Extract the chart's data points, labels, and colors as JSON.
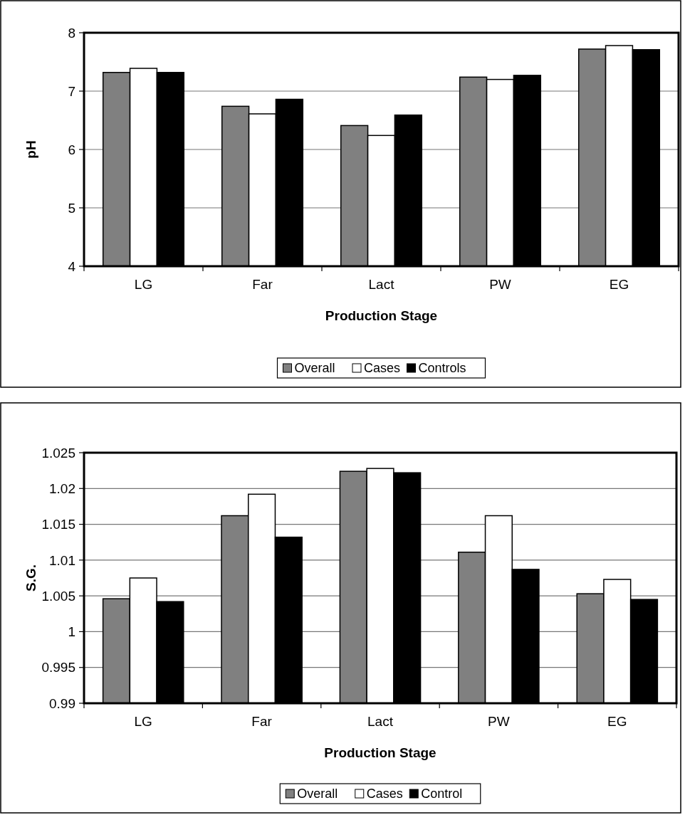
{
  "chart_data": [
    {
      "type": "bar",
      "xlabel": "Production Stage",
      "ylabel": "pH",
      "categories": [
        "LG",
        "Far",
        "Lact",
        "PW",
        "EG"
      ],
      "ylim": [
        4,
        8
      ],
      "yticks": [
        4,
        5,
        6,
        7,
        8
      ],
      "grid": "y",
      "legend": "bottom",
      "series": [
        {
          "name": "Overall",
          "color": "#808080",
          "values": [
            7.32,
            6.74,
            6.41,
            7.24,
            7.72
          ]
        },
        {
          "name": "Cases",
          "color": "#ffffff",
          "values": [
            7.39,
            6.61,
            6.24,
            7.2,
            7.78
          ]
        },
        {
          "name": "Controls",
          "color": "#000000",
          "values": [
            7.32,
            6.86,
            6.59,
            7.27,
            7.71
          ]
        }
      ]
    },
    {
      "type": "bar",
      "xlabel": "Production Stage",
      "ylabel": "S.G.",
      "categories": [
        "LG",
        "Far",
        "Lact",
        "PW",
        "EG"
      ],
      "ylim": [
        0.99,
        1.025
      ],
      "yticks": [
        0.99,
        0.995,
        1,
        1.005,
        1.01,
        1.015,
        1.02,
        1.025
      ],
      "grid": "y",
      "legend": "bottom",
      "series": [
        {
          "name": "Overall",
          "color": "#808080",
          "values": [
            1.0046,
            1.0162,
            1.0224,
            1.0111,
            1.0053
          ]
        },
        {
          "name": "Cases",
          "color": "#ffffff",
          "values": [
            1.0075,
            1.0192,
            1.0228,
            1.0162,
            1.0073
          ]
        },
        {
          "name": "Control",
          "color": "#000000",
          "values": [
            1.0042,
            1.0132,
            1.0222,
            1.0087,
            1.0045
          ]
        }
      ]
    }
  ]
}
